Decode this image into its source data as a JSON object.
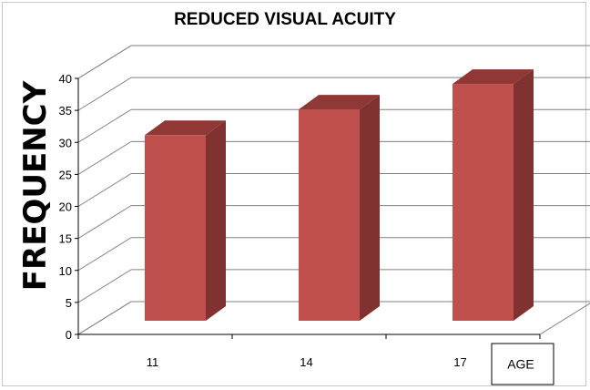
{
  "chart_data": {
    "type": "bar",
    "title": "REDUCED VISUAL ACUITY",
    "xlabel": "AGE",
    "ylabel": "FREQUENCY",
    "categories": [
      "11",
      "14",
      "17"
    ],
    "values": [
      29,
      33,
      37
    ],
    "ylim": [
      0,
      40
    ],
    "yticks": [
      0,
      5,
      10,
      15,
      20,
      25,
      30,
      35,
      40
    ],
    "grid": true,
    "style": "3d-column",
    "colors": {
      "bar_front": "#c0504d",
      "bar_side": "#7f3230",
      "bar_top": "#8f3836",
      "gridline": "#808080"
    }
  }
}
